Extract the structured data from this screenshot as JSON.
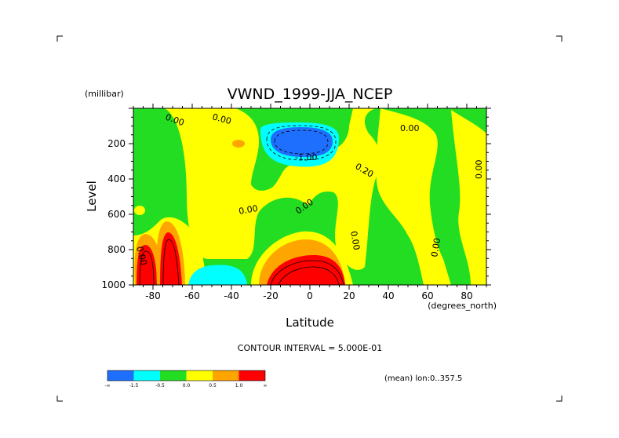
{
  "chart_data": {
    "type": "heatmap",
    "title": "VWND_1999-JJA_NCEP",
    "ylabel": "Level",
    "yunits": "(millibar)",
    "xlabel": "Latitude",
    "xunits": "(degrees_north)",
    "xlim": [
      -90,
      90
    ],
    "ylim": [
      1000,
      0
    ],
    "xticks": [
      -80,
      -60,
      -40,
      -20,
      0,
      20,
      40,
      60,
      80
    ],
    "yticks": [
      200,
      400,
      600,
      800,
      1000
    ],
    "footer": "CONTOUR INTERVAL = 5.000E-01",
    "annotation": "(mean) lon:0..357.5",
    "colorbar": {
      "colors": [
        "#1f6fff",
        "#00ffff",
        "#22dd22",
        "#ffff00",
        "#ffa500",
        "#ff0000"
      ],
      "labels": [
        "-∞",
        "-1.5",
        "-0.5",
        "0.0",
        "0.5",
        "1.0",
        "∞"
      ]
    },
    "contour_labels": [
      "0.00",
      "0.00",
      "-1.00",
      "0.00",
      "0.20",
      "0.00",
      "0.00",
      "0.00",
      "0.00",
      "0.00",
      "0.00"
    ],
    "regions": [
      {
        "level": "0.0",
        "note": "background zero band"
      },
      {
        "level": "-1.5",
        "lat": 0,
        "pressure": 200,
        "note": "strong negative core"
      },
      {
        "level": "1.0",
        "lat": -77,
        "pressure": 900,
        "note": "positive core"
      },
      {
        "level": "1.0",
        "lat": 3,
        "pressure": 950,
        "note": "positive core"
      },
      {
        "level": "-0.5",
        "lat": -45,
        "pressure": 980,
        "note": "negative low-level"
      }
    ]
  }
}
